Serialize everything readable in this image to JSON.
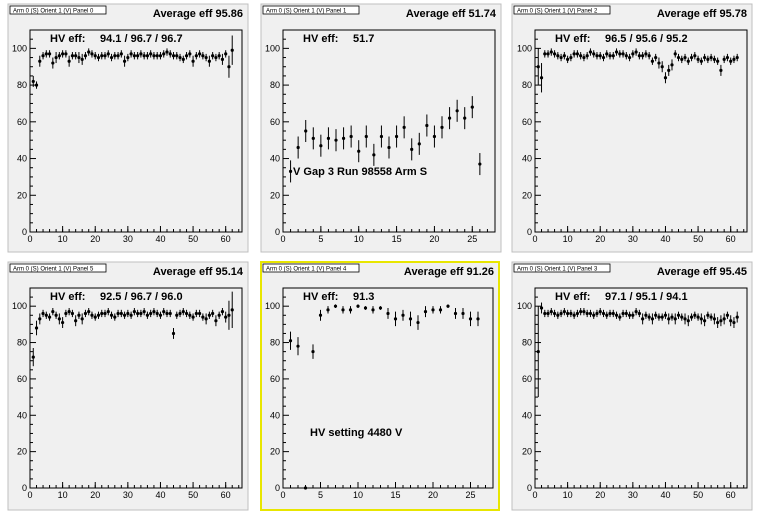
{
  "chart_data": [
    {
      "type": "scatter",
      "pad_title": "Arm 0 (S) Orient 1 (V) Panel 0",
      "average_label": "Average eff 95.86",
      "hv_label": "HV eff:",
      "hv_values": "94.1 / 96.7 / 96.7",
      "note": "",
      "selected": false,
      "xlim": [
        0,
        65
      ],
      "ylim": [
        0,
        110
      ],
      "xticks": [
        0,
        10,
        20,
        30,
        40,
        50,
        60
      ],
      "yticks": [
        0,
        20,
        40,
        60,
        80,
        100
      ],
      "x": [
        1,
        2,
        3,
        4,
        5,
        6,
        7,
        8,
        9,
        10,
        11,
        12,
        13,
        14,
        15,
        16,
        17,
        18,
        19,
        20,
        21,
        22,
        23,
        24,
        25,
        26,
        27,
        28,
        29,
        30,
        31,
        32,
        33,
        34,
        35,
        36,
        37,
        38,
        39,
        40,
        41,
        42,
        43,
        44,
        45,
        46,
        47,
        48,
        49,
        50,
        51,
        52,
        53,
        54,
        55,
        56,
        57,
        58,
        59,
        60,
        61,
        62
      ],
      "y": [
        82,
        80,
        93,
        96,
        97,
        97,
        92,
        95,
        96,
        97,
        97,
        93,
        96,
        96,
        95,
        94,
        96,
        98,
        97,
        96,
        95,
        96,
        96,
        97,
        95,
        96,
        96,
        97,
        93,
        95,
        97,
        96,
        96,
        97,
        96,
        96,
        97,
        96,
        96,
        96,
        97,
        98,
        97,
        96,
        96,
        95,
        94,
        96,
        97,
        93,
        96,
        97,
        96,
        95,
        93,
        96,
        95,
        96,
        94,
        97,
        90,
        99
      ],
      "err": [
        3,
        2,
        3,
        2,
        2,
        2,
        3,
        3,
        2,
        2,
        2,
        3,
        2,
        2,
        3,
        3,
        2,
        2,
        2,
        2,
        2,
        2,
        2,
        2,
        2,
        2,
        2,
        2,
        3,
        2,
        2,
        2,
        2,
        2,
        2,
        2,
        2,
        2,
        2,
        2,
        2,
        2,
        2,
        2,
        2,
        2,
        2,
        2,
        2,
        3,
        2,
        2,
        2,
        2,
        3,
        2,
        2,
        2,
        3,
        2,
        6,
        8
      ]
    },
    {
      "type": "scatter",
      "pad_title": "Arm 0 (S) Orient 1 (V) Panel 1",
      "average_label": "Average eff 51.74",
      "hv_label": "HV eff:",
      "hv_values": "51.7",
      "note": "V Gap 3 Run 98558 Arm S",
      "selected": false,
      "xlim": [
        0,
        28
      ],
      "ylim": [
        0,
        110
      ],
      "xticks": [
        0,
        5,
        10,
        15,
        20,
        25
      ],
      "yticks": [
        0,
        20,
        40,
        60,
        80,
        100
      ],
      "x": [
        1,
        2,
        3,
        4,
        5,
        6,
        7,
        8,
        9,
        10,
        11,
        12,
        13,
        14,
        15,
        16,
        17,
        18,
        19,
        20,
        21,
        22,
        23,
        24,
        25,
        26
      ],
      "y": [
        33,
        46,
        55,
        51,
        47,
        51,
        50,
        51,
        52,
        44,
        52,
        42,
        52,
        46,
        52,
        57,
        45,
        48,
        58,
        52,
        57,
        62,
        66,
        62,
        68,
        37
      ],
      "err": [
        6,
        6,
        6,
        6,
        6,
        6,
        6,
        6,
        6,
        6,
        6,
        6,
        6,
        6,
        6,
        6,
        6,
        6,
        6,
        6,
        6,
        6,
        6,
        6,
        6,
        6
      ]
    },
    {
      "type": "scatter",
      "pad_title": "Arm 0 (S) Orient 1 (V) Panel 2",
      "average_label": "Average eff 95.78",
      "hv_label": "HV eff:",
      "hv_values": "96.5 / 95.6 / 95.2",
      "note": "",
      "selected": false,
      "xlim": [
        0,
        65
      ],
      "ylim": [
        0,
        110
      ],
      "xticks": [
        0,
        10,
        20,
        30,
        40,
        50,
        60
      ],
      "yticks": [
        0,
        20,
        40,
        60,
        80,
        100
      ],
      "x": [
        1,
        2,
        3,
        4,
        5,
        6,
        7,
        8,
        9,
        10,
        11,
        12,
        13,
        14,
        15,
        16,
        17,
        18,
        19,
        20,
        21,
        22,
        23,
        24,
        25,
        26,
        27,
        28,
        29,
        30,
        31,
        32,
        33,
        34,
        35,
        36,
        37,
        38,
        39,
        40,
        41,
        42,
        43,
        44,
        45,
        46,
        47,
        48,
        49,
        50,
        51,
        52,
        53,
        54,
        55,
        56,
        57,
        58,
        59,
        60,
        61,
        62
      ],
      "y": [
        90,
        84,
        97,
        97,
        98,
        97,
        96,
        95,
        96,
        94,
        95,
        97,
        97,
        96,
        95,
        96,
        98,
        97,
        96,
        96,
        95,
        97,
        96,
        96,
        98,
        97,
        97,
        96,
        95,
        97,
        98,
        96,
        96,
        97,
        96,
        93,
        95,
        92,
        90,
        84,
        88,
        91,
        97,
        95,
        94,
        95,
        93,
        95,
        96,
        94,
        93,
        95,
        94,
        95,
        94,
        93,
        88,
        94,
        95,
        93,
        94,
        95
      ],
      "err": [
        10,
        8,
        2,
        2,
        2,
        2,
        2,
        2,
        2,
        2,
        2,
        2,
        2,
        2,
        2,
        2,
        2,
        2,
        2,
        2,
        2,
        2,
        2,
        2,
        2,
        2,
        2,
        2,
        2,
        2,
        2,
        2,
        2,
        2,
        2,
        2,
        2,
        3,
        3,
        3,
        3,
        3,
        2,
        2,
        2,
        2,
        2,
        2,
        2,
        2,
        2,
        2,
        2,
        2,
        2,
        2,
        3,
        2,
        2,
        2,
        2,
        2
      ]
    },
    {
      "type": "scatter",
      "pad_title": "Arm 0 (S) Orient 1 (V) Panel 5",
      "average_label": "Average eff 95.14",
      "hv_label": "HV eff:",
      "hv_values": "92.5 / 96.7 / 96.0",
      "note": "",
      "selected": false,
      "xlim": [
        0,
        65
      ],
      "ylim": [
        0,
        110
      ],
      "xticks": [
        0,
        10,
        20,
        30,
        40,
        50,
        60
      ],
      "yticks": [
        0,
        20,
        40,
        60,
        80,
        100
      ],
      "x": [
        1,
        2,
        3,
        4,
        5,
        6,
        7,
        8,
        9,
        10,
        11,
        12,
        13,
        14,
        15,
        16,
        17,
        18,
        19,
        20,
        21,
        22,
        23,
        24,
        25,
        26,
        27,
        28,
        29,
        30,
        31,
        32,
        33,
        34,
        35,
        36,
        37,
        38,
        39,
        40,
        41,
        42,
        43,
        44,
        45,
        46,
        47,
        48,
        49,
        50,
        51,
        52,
        53,
        54,
        55,
        56,
        57,
        58,
        59,
        60,
        61,
        62
      ],
      "y": [
        72,
        88,
        93,
        96,
        95,
        94,
        97,
        95,
        93,
        91,
        96,
        97,
        96,
        92,
        95,
        93,
        96,
        97,
        95,
        94,
        95,
        96,
        96,
        97,
        95,
        94,
        96,
        96,
        95,
        96,
        95,
        97,
        96,
        96,
        97,
        95,
        96,
        97,
        96,
        95,
        97,
        96,
        96,
        85,
        95,
        96,
        97,
        96,
        95,
        94,
        96,
        96,
        94,
        93,
        95,
        96,
        92,
        95,
        97,
        94,
        95,
        98
      ],
      "err": [
        5,
        4,
        3,
        2,
        2,
        2,
        2,
        2,
        3,
        3,
        2,
        2,
        2,
        3,
        2,
        3,
        2,
        2,
        2,
        2,
        2,
        2,
        2,
        2,
        2,
        2,
        2,
        2,
        2,
        2,
        2,
        2,
        2,
        2,
        2,
        2,
        2,
        2,
        2,
        2,
        2,
        2,
        2,
        3,
        2,
        2,
        2,
        2,
        2,
        2,
        2,
        2,
        2,
        3,
        2,
        2,
        3,
        2,
        2,
        3,
        8,
        10
      ]
    },
    {
      "type": "scatter",
      "pad_title": "Arm 0 (S) Orient 1 (V) Panel 4",
      "average_label": "Average eff 91.26",
      "hv_label": "HV eff:",
      "hv_values": "91.3",
      "note": "HV setting 4480 V",
      "selected": true,
      "xlim": [
        0,
        28
      ],
      "ylim": [
        0,
        110
      ],
      "xticks": [
        0,
        5,
        10,
        15,
        20,
        25
      ],
      "yticks": [
        0,
        20,
        40,
        60,
        80,
        100
      ],
      "x": [
        1,
        2,
        3,
        4,
        5,
        6,
        7,
        8,
        9,
        10,
        11,
        12,
        13,
        14,
        15,
        16,
        17,
        18,
        19,
        20,
        21,
        22,
        23,
        24,
        25,
        26
      ],
      "y": [
        81,
        78,
        0,
        75,
        95,
        98,
        100,
        98,
        98,
        100,
        99,
        98,
        99,
        96,
        93,
        95,
        93,
        91,
        97,
        98,
        98,
        100,
        96,
        96,
        93,
        93
      ],
      "err": [
        5,
        5,
        1,
        4,
        3,
        2,
        1,
        2,
        2,
        1,
        1,
        2,
        1,
        3,
        4,
        3,
        4,
        4,
        3,
        2,
        2,
        1,
        3,
        3,
        4,
        4
      ]
    },
    {
      "type": "scatter",
      "pad_title": "Arm 0 (S) Orient 1 (V) Panel 3",
      "average_label": "Average eff 95.45",
      "hv_label": "HV eff:",
      "hv_values": "97.1 / 95.1 / 94.1",
      "note": "",
      "selected": false,
      "xlim": [
        0,
        65
      ],
      "ylim": [
        0,
        110
      ],
      "xticks": [
        0,
        10,
        20,
        30,
        40,
        50,
        60
      ],
      "yticks": [
        0,
        20,
        40,
        60,
        80,
        100
      ],
      "x": [
        1,
        2,
        3,
        4,
        5,
        6,
        7,
        8,
        9,
        10,
        11,
        12,
        13,
        14,
        15,
        16,
        17,
        18,
        19,
        20,
        21,
        22,
        23,
        24,
        25,
        26,
        27,
        28,
        29,
        30,
        31,
        32,
        33,
        34,
        35,
        36,
        37,
        38,
        39,
        40,
        41,
        42,
        43,
        44,
        45,
        46,
        47,
        48,
        49,
        50,
        51,
        52,
        53,
        54,
        55,
        56,
        57,
        58,
        59,
        60,
        61,
        62
      ],
      "y": [
        75,
        99,
        96,
        96,
        97,
        96,
        95,
        96,
        97,
        96,
        96,
        95,
        96,
        97,
        97,
        96,
        96,
        95,
        96,
        97,
        96,
        95,
        96,
        96,
        95,
        94,
        96,
        96,
        95,
        95,
        97,
        96,
        93,
        95,
        94,
        93,
        95,
        94,
        94,
        95,
        93,
        94,
        93,
        95,
        94,
        93,
        92,
        94,
        95,
        94,
        93,
        92,
        95,
        94,
        93,
        91,
        92,
        93,
        95,
        92,
        91,
        94
      ],
      "err": [
        25,
        3,
        2,
        2,
        2,
        2,
        2,
        2,
        2,
        2,
        2,
        2,
        2,
        2,
        2,
        2,
        2,
        2,
        2,
        2,
        2,
        2,
        2,
        2,
        2,
        2,
        2,
        2,
        2,
        2,
        2,
        2,
        3,
        2,
        2,
        3,
        2,
        2,
        2,
        2,
        3,
        2,
        3,
        2,
        2,
        3,
        3,
        2,
        2,
        2,
        3,
        3,
        2,
        2,
        3,
        3,
        3,
        3,
        2,
        3,
        3,
        3
      ]
    }
  ]
}
